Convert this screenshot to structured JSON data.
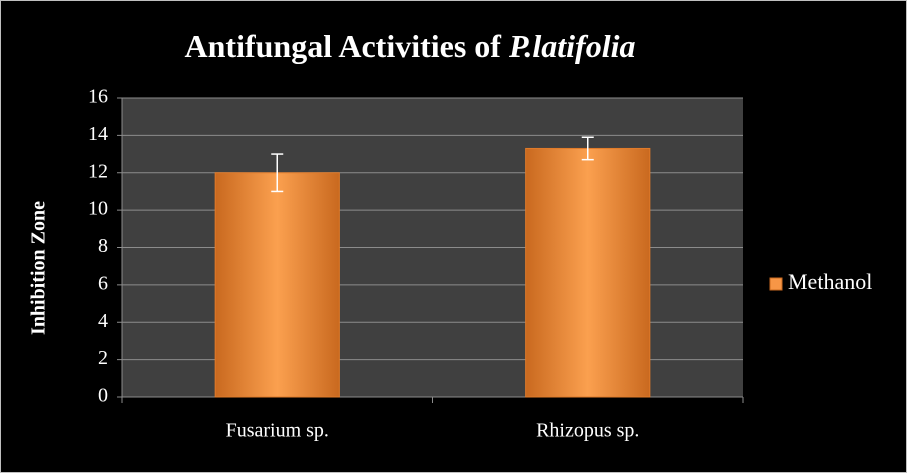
{
  "chart_data": {
    "type": "bar",
    "title": [
      "Antifungal Activities of",
      "P.latifolia"
    ],
    "y_label": "Inhibition Zone",
    "categories": [
      "Fusarium sp.",
      "Rhizopus sp."
    ],
    "series": [
      {
        "name": "Methanol",
        "color": "#f79646",
        "values": [
          12,
          13.3
        ],
        "errors": [
          1,
          0.6
        ]
      }
    ],
    "ylim": [
      0,
      16
    ],
    "yticks": [
      0,
      2,
      4,
      6,
      8,
      10,
      12,
      14,
      16
    ],
    "grid": true,
    "legend": "right"
  }
}
